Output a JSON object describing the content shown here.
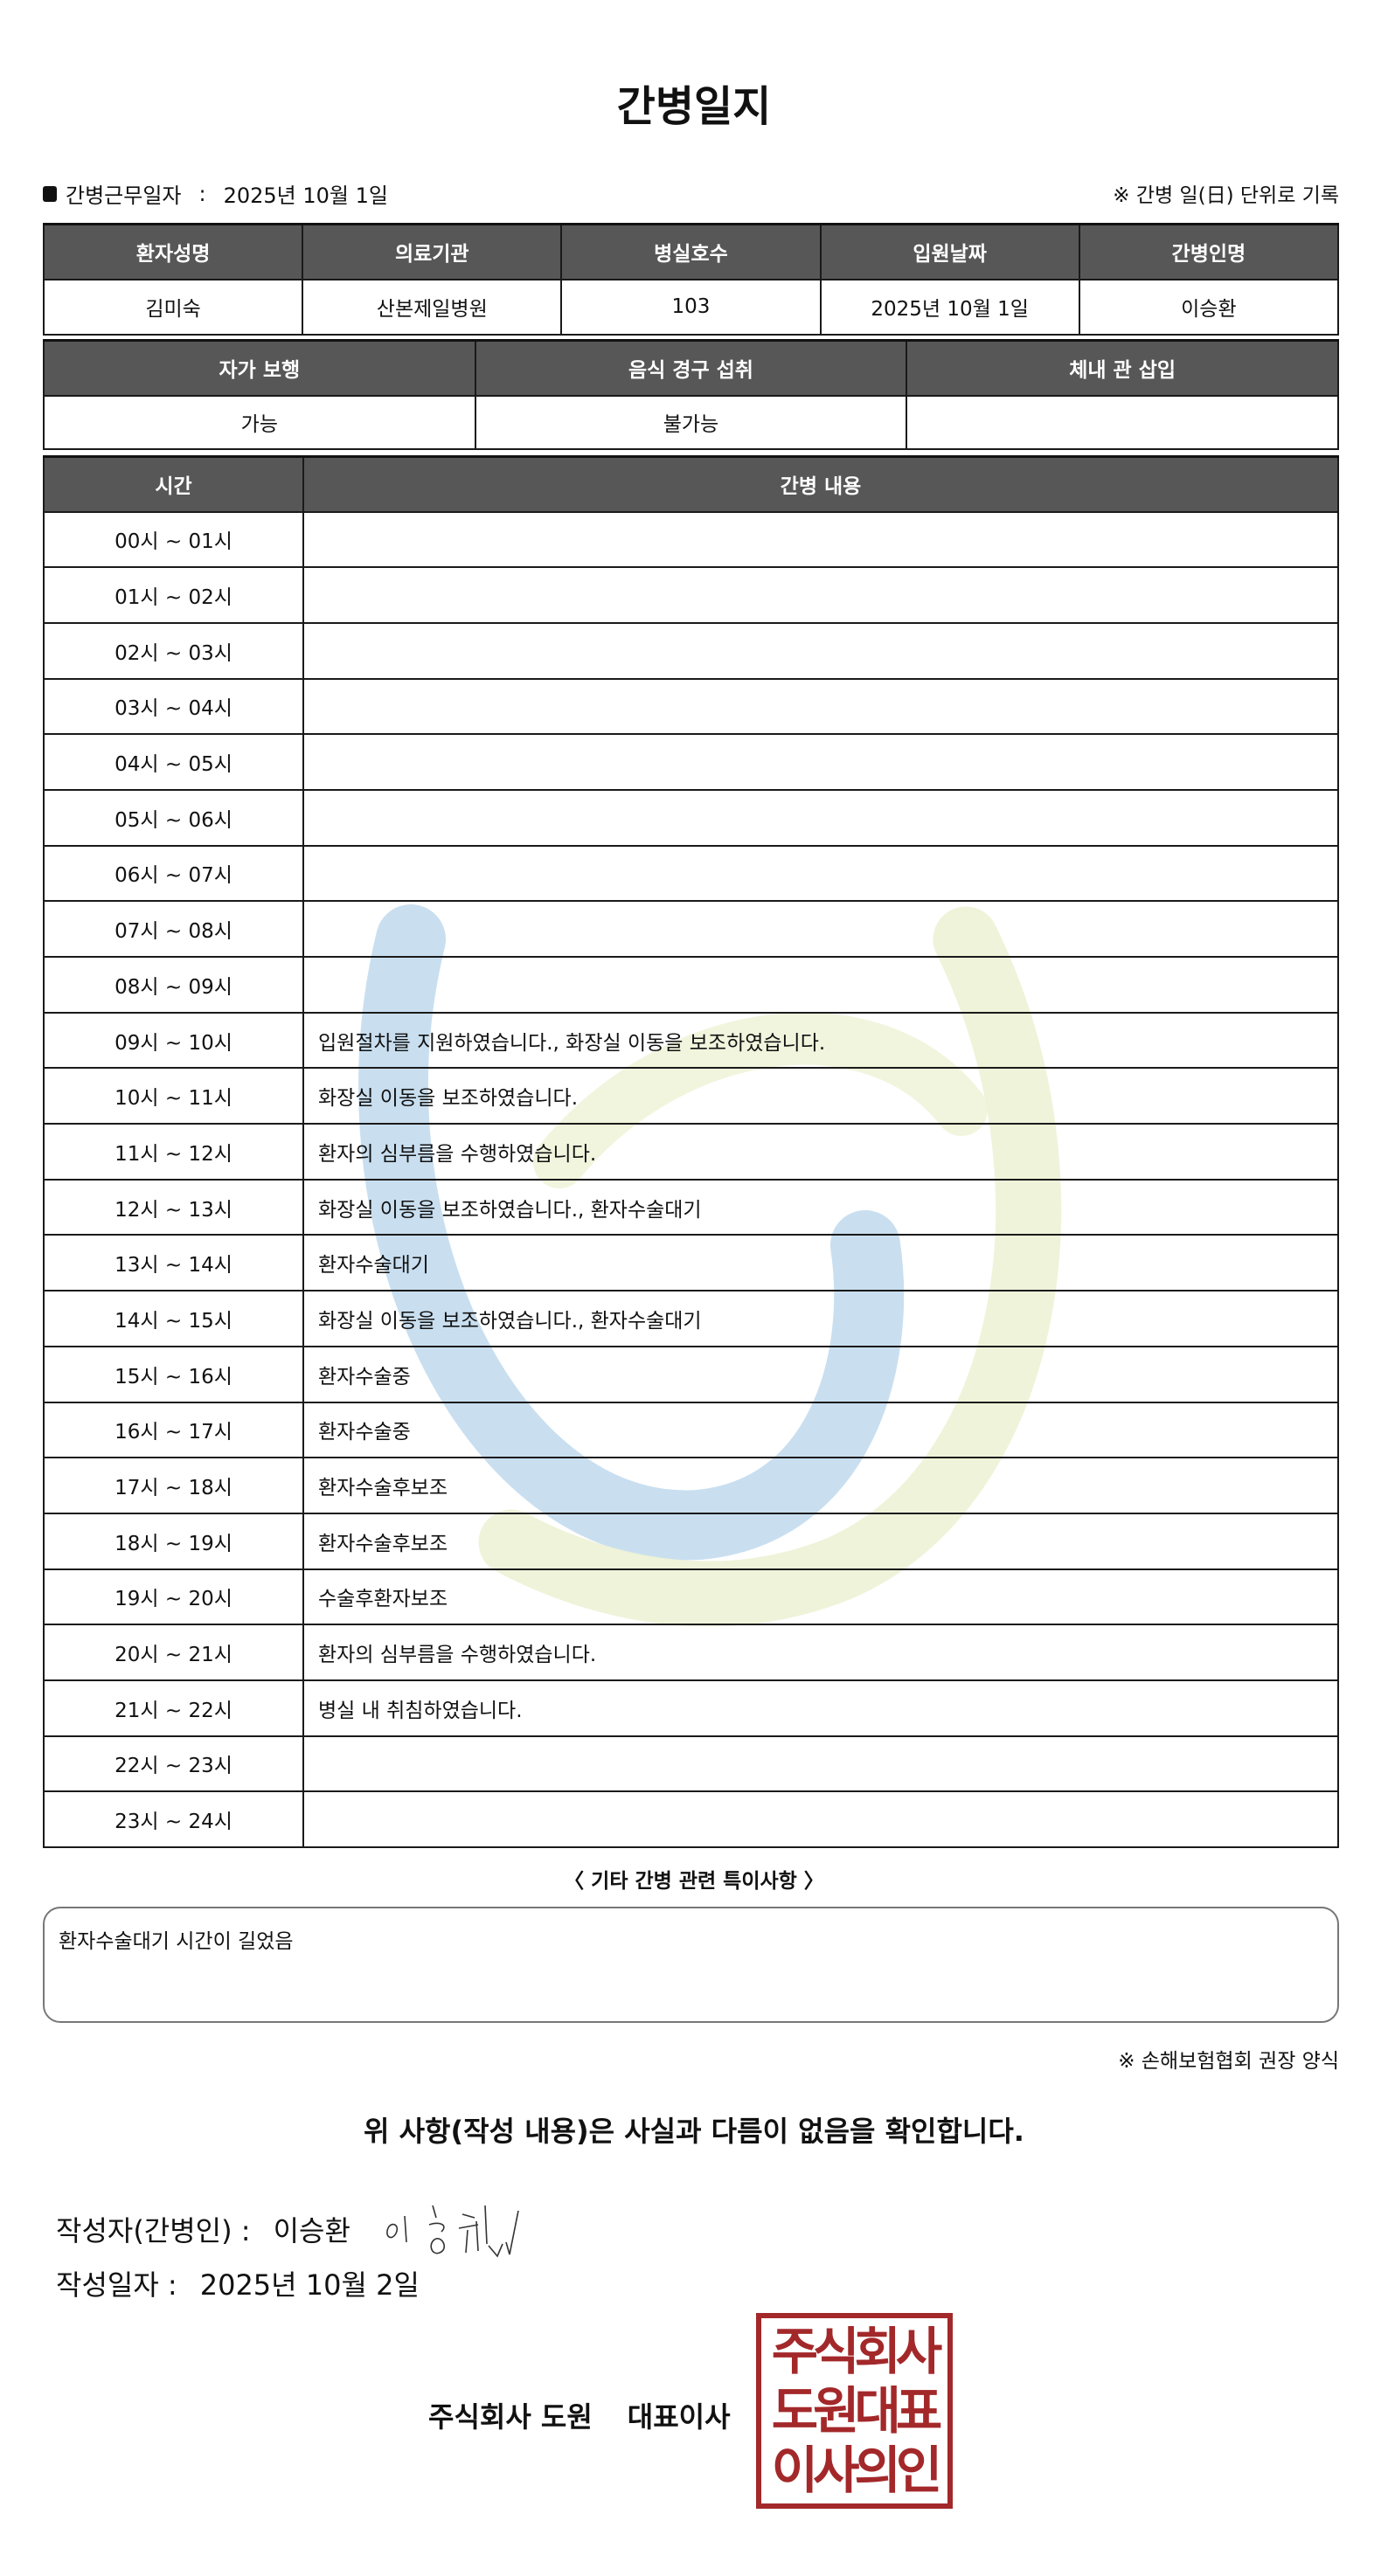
{
  "title": "간병일지",
  "info": {
    "label": "간병근무일자",
    "sep": ":",
    "date": "2025년 10월 1일",
    "rule": "※ 간병 일(日) 단위로 기록"
  },
  "patient_table": {
    "headers": [
      "환자성명",
      "의료기관",
      "병실호수",
      "입원날짜",
      "간병인명"
    ],
    "values": [
      "김미숙",
      "산본제일병원",
      "103",
      "2025년 10월 1일",
      "이승환"
    ]
  },
  "status_table": {
    "headers": [
      "자가 보행",
      "음식 경구 섭취",
      "체내 관 삽입"
    ],
    "values": [
      "가능",
      "불가능",
      ""
    ]
  },
  "log_table": {
    "headers": [
      "시간",
      "간병 내용"
    ],
    "rows": [
      {
        "time": "00시 ~ 01시",
        "content": ""
      },
      {
        "time": "01시 ~ 02시",
        "content": ""
      },
      {
        "time": "02시 ~ 03시",
        "content": ""
      },
      {
        "time": "03시 ~ 04시",
        "content": ""
      },
      {
        "time": "04시 ~ 05시",
        "content": ""
      },
      {
        "time": "05시 ~ 06시",
        "content": ""
      },
      {
        "time": "06시 ~ 07시",
        "content": ""
      },
      {
        "time": "07시 ~ 08시",
        "content": ""
      },
      {
        "time": "08시 ~ 09시",
        "content": ""
      },
      {
        "time": "09시 ~ 10시",
        "content": "입원절차를 지원하였습니다., 화장실 이동을 보조하였습니다."
      },
      {
        "time": "10시 ~ 11시",
        "content": "화장실 이동을 보조하였습니다."
      },
      {
        "time": "11시 ~ 12시",
        "content": "환자의 심부름을 수행하였습니다."
      },
      {
        "time": "12시 ~ 13시",
        "content": "화장실 이동을 보조하였습니다., 환자수술대기"
      },
      {
        "time": "13시 ~ 14시",
        "content": "환자수술대기"
      },
      {
        "time": "14시 ~ 15시",
        "content": "화장실 이동을 보조하였습니다., 환자수술대기"
      },
      {
        "time": "15시 ~ 16시",
        "content": "환자수술중"
      },
      {
        "time": "16시 ~ 17시",
        "content": "환자수술중"
      },
      {
        "time": "17시 ~ 18시",
        "content": "환자수술후보조"
      },
      {
        "time": "18시 ~ 19시",
        "content": "환자수술후보조"
      },
      {
        "time": "19시 ~ 20시",
        "content": "수술후환자보조"
      },
      {
        "time": "20시 ~ 21시",
        "content": "환자의 심부름을 수행하였습니다."
      },
      {
        "time": "21시 ~ 22시",
        "content": "병실 내 취침하였습니다."
      },
      {
        "time": "22시 ~ 23시",
        "content": ""
      },
      {
        "time": "23시 ~ 24시",
        "content": ""
      }
    ]
  },
  "notes": {
    "heading": "〈 기타 간병 관련 특이사항 〉",
    "content": "환자수술대기 시간이 길었음"
  },
  "form_source": "※ 손해보험협회 권장 양식",
  "confirmation": "위 사항(작성 내용)은 사실과 다름이 없음을 확인합니다.",
  "writer": {
    "label": "작성자(간병인) :",
    "name": "이승환"
  },
  "written_date": {
    "label": "작성일자 :",
    "value": "2025년 10월 2일"
  },
  "company": {
    "name": "주식회사 도원",
    "title": "대표이사"
  },
  "stamp": {
    "lines": [
      "주식회사",
      "도원대표",
      "이사의인"
    ],
    "color": "#a3282a"
  },
  "colors": {
    "header_bg": "#575757",
    "watermark_blue": "#c9dff0",
    "watermark_green": "#edf2d5"
  }
}
